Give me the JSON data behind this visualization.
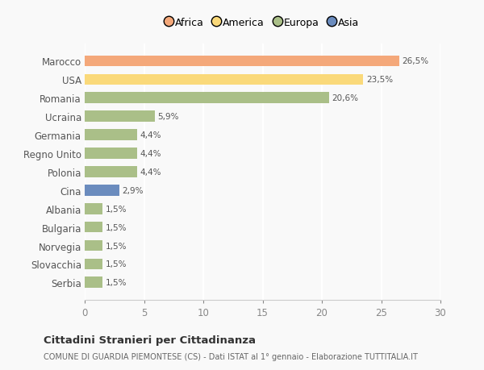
{
  "categories": [
    "Marocco",
    "USA",
    "Romania",
    "Ucraina",
    "Germania",
    "Regno Unito",
    "Polonia",
    "Cina",
    "Albania",
    "Bulgaria",
    "Norvegia",
    "Slovacchia",
    "Serbia"
  ],
  "values": [
    26.5,
    23.5,
    20.6,
    5.9,
    4.4,
    4.4,
    4.4,
    2.9,
    1.5,
    1.5,
    1.5,
    1.5,
    1.5
  ],
  "labels": [
    "26,5%",
    "23,5%",
    "20,6%",
    "5,9%",
    "4,4%",
    "4,4%",
    "4,4%",
    "2,9%",
    "1,5%",
    "1,5%",
    "1,5%",
    "1,5%",
    "1,5%"
  ],
  "colors": [
    "#F4A87A",
    "#FAD97A",
    "#AABF88",
    "#AABF88",
    "#AABF88",
    "#AABF88",
    "#AABF88",
    "#6B8CBE",
    "#AABF88",
    "#AABF88",
    "#AABF88",
    "#AABF88",
    "#AABF88"
  ],
  "legend": [
    {
      "label": "Africa",
      "color": "#F4A87A"
    },
    {
      "label": "America",
      "color": "#FAD97A"
    },
    {
      "label": "Europa",
      "color": "#AABF88"
    },
    {
      "label": "Asia",
      "color": "#6B8CBE"
    }
  ],
  "xlim": [
    0,
    30
  ],
  "xticks": [
    0,
    5,
    10,
    15,
    20,
    25,
    30
  ],
  "title": "Cittadini Stranieri per Cittadinanza",
  "subtitle": "COMUNE DI GUARDIA PIEMONTESE (CS) - Dati ISTAT al 1° gennaio - Elaborazione TUTTITALIA.IT",
  "background_color": "#f9f9f9",
  "grid_color": "#ffffff",
  "bar_height": 0.6
}
